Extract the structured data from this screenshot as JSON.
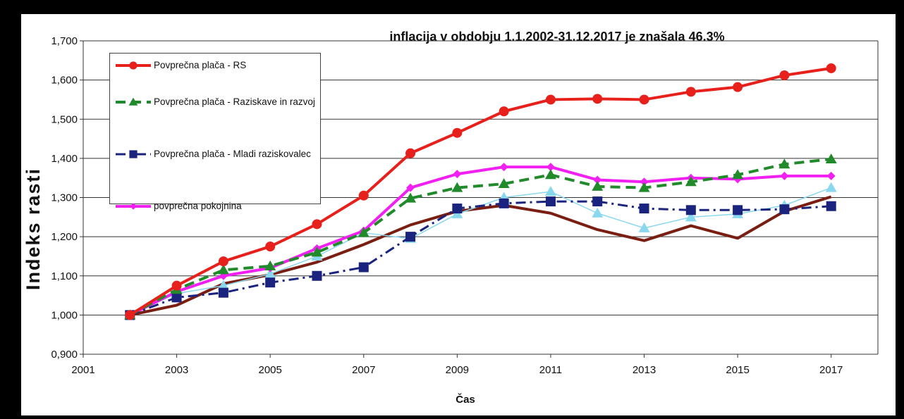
{
  "chart_data": {
    "type": "line",
    "annotation": "inflacija v obdobju 1.1.2002-31.12.2017 je znašala 46.3%",
    "x_label": "Čas",
    "y_label": "Indeks rasti",
    "x": [
      2002,
      2003,
      2004,
      2005,
      2006,
      2007,
      2008,
      2009,
      2010,
      2011,
      2012,
      2013,
      2014,
      2015,
      2016,
      2017
    ],
    "xlim": [
      2001,
      2018
    ],
    "xticks": [
      2001,
      2003,
      2005,
      2007,
      2009,
      2011,
      2013,
      2015,
      2017
    ],
    "ylim": [
      0.9,
      1.7
    ],
    "yticks": [
      {
        "value": 0.9,
        "label": "0,900"
      },
      {
        "value": 1.0,
        "label": "1,000"
      },
      {
        "value": 1.1,
        "label": "1,100"
      },
      {
        "value": 1.2,
        "label": "1,200"
      },
      {
        "value": 1.3,
        "label": "1,300"
      },
      {
        "value": 1.4,
        "label": "1,400"
      },
      {
        "value": 1.5,
        "label": "1,500"
      },
      {
        "value": 1.6,
        "label": "1,600"
      },
      {
        "value": 1.7,
        "label": "1,700"
      }
    ],
    "grid": true,
    "legend": "upper left",
    "series": [
      {
        "name": "Povprečna plača - RS",
        "color": "#e8201c",
        "marker": "circle",
        "line_style": "solid",
        "values": [
          1.0,
          1.075,
          1.137,
          1.175,
          1.232,
          1.305,
          1.413,
          1.465,
          1.52,
          1.55,
          1.552,
          1.55,
          1.57,
          1.582,
          1.612,
          1.63
        ]
      },
      {
        "name": "Povprečna plača - Raziskave in razvoj",
        "color": "#218a2a",
        "marker": "triangle",
        "line_style": "dashed",
        "values": [
          1.0,
          1.065,
          1.115,
          1.125,
          1.16,
          1.21,
          1.298,
          1.325,
          1.335,
          1.358,
          1.328,
          1.325,
          1.34,
          1.358,
          1.385,
          1.398
        ]
      },
      {
        "name": "Povprečna plača - Mladi raziskovalec",
        "color": "#1a237e",
        "marker": "square",
        "line_style": "dashdot",
        "values": [
          1.0,
          1.045,
          1.057,
          1.083,
          1.1,
          1.122,
          1.2,
          1.272,
          1.285,
          1.29,
          1.29,
          1.272,
          1.268,
          1.268,
          1.27,
          1.278
        ]
      },
      {
        "name": "povprečna pokojnina",
        "color": "#f21ff2",
        "marker": "diamond",
        "line_style": "solid",
        "values": [
          1.0,
          1.06,
          1.1,
          1.12,
          1.17,
          1.215,
          1.325,
          1.36,
          1.378,
          1.378,
          1.345,
          1.34,
          1.35,
          1.347,
          1.355,
          1.355
        ]
      },
      {
        "color": "#8ad8ee",
        "marker": "triangle",
        "line_style": "thin",
        "values": [
          1.0,
          1.055,
          1.075,
          1.105,
          1.15,
          1.21,
          1.195,
          1.258,
          1.3,
          1.315,
          1.26,
          1.222,
          1.25,
          1.258,
          1.28,
          1.325
        ]
      },
      {
        "color": "#7a1e12",
        "marker": "none",
        "line_style": "solid",
        "values": [
          1.0,
          1.025,
          1.08,
          1.103,
          1.135,
          1.18,
          1.23,
          1.265,
          1.28,
          1.26,
          1.218,
          1.19,
          1.228,
          1.196,
          1.265,
          1.302
        ]
      }
    ]
  }
}
